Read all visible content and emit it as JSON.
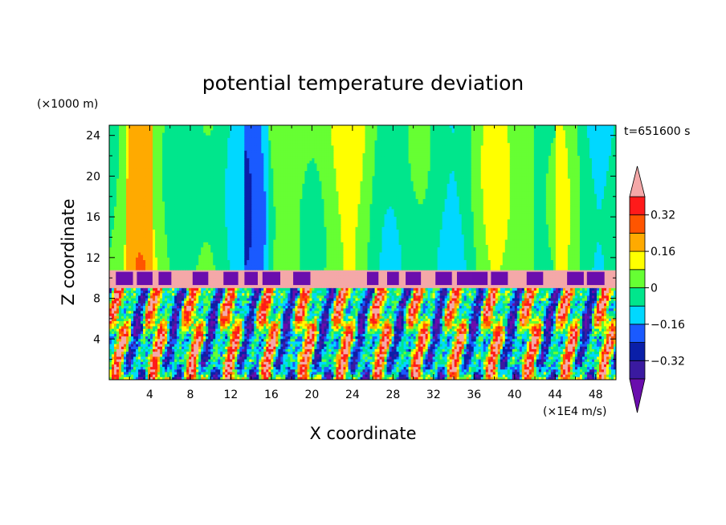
{
  "chart_data": {
    "type": "heatmap",
    "title": "potential temperature deviation",
    "xlabel": "X coordinate",
    "ylabel": "Z coordinate",
    "x_unit": "(×1E4 m/s)",
    "y_unit": "(×1000 m)",
    "time_label": "t=651600 s",
    "xlim": [
      0,
      50
    ],
    "ylim": [
      0,
      25
    ],
    "x_ticks": [
      "4",
      "8",
      "12",
      "16",
      "20",
      "24",
      "28",
      "32",
      "36",
      "40",
      "44",
      "48"
    ],
    "x_tick_values": [
      4,
      8,
      12,
      16,
      20,
      24,
      28,
      32,
      36,
      40,
      44,
      48
    ],
    "y_ticks": [
      "4",
      "8",
      "12",
      "16",
      "20",
      "24"
    ],
    "y_tick_values": [
      4,
      8,
      12,
      16,
      20,
      24
    ],
    "colorbar": {
      "levels": [
        -0.4,
        -0.32,
        -0.24,
        -0.16,
        -0.08,
        0,
        0.08,
        0.16,
        0.24,
        0.32,
        0.4
      ],
      "tick_labels": [
        "0.32",
        "0.16",
        "0",
        "−0.16",
        "−0.32"
      ],
      "tick_values": [
        0.32,
        0.16,
        0,
        -0.16,
        -0.32
      ],
      "colors": [
        "#6a0dad",
        "#3a1aa0",
        "#0a1fa8",
        "#1a5aff",
        "#00d8ff",
        "#00e68c",
        "#66ff33",
        "#ffff00",
        "#ffaa00",
        "#ff5500",
        "#ff1a1a",
        "#f4a8a8"
      ]
    },
    "layers": {
      "stable_layer_z": [
        9,
        10.7
      ],
      "convective_top_z": 9,
      "plume_x": [
        1.5,
        3.5,
        5.5,
        9,
        12,
        14,
        16,
        19,
        26,
        28,
        30,
        33,
        35,
        36.5,
        38.5,
        42,
        46,
        48
      ]
    }
  }
}
